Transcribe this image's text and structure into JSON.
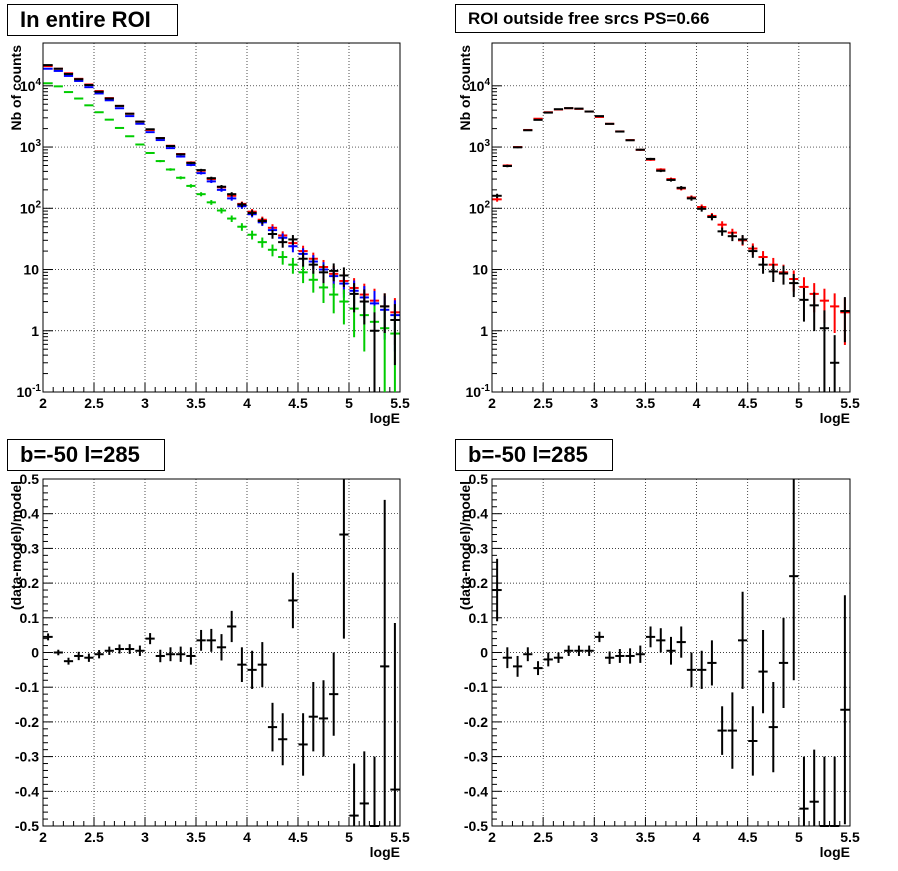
{
  "chart_data": [
    {
      "type": "scatter",
      "title": "In entire ROI",
      "xlabel": "logE",
      "ylabel": "Nb of counts",
      "xlim": [
        2,
        5.5
      ],
      "ylim": [
        0.1,
        50000
      ],
      "yscale": "log",
      "grid": true,
      "xticks": [
        "2",
        "2.5",
        "3",
        "3.5",
        "4",
        "4.5",
        "5",
        "5.5"
      ],
      "yticks": [
        "10^-1",
        "1",
        "10",
        "10^2",
        "10^3",
        "10^4"
      ],
      "series": [
        {
          "color": "#ff0000",
          "x": [
            2.05,
            2.15,
            2.25,
            2.35,
            2.45,
            2.55,
            2.65,
            2.75,
            2.85,
            2.95,
            3.05,
            3.15,
            3.25,
            3.35,
            3.45,
            3.55,
            3.65,
            3.75,
            3.85,
            3.95,
            4.05,
            4.15,
            4.25,
            4.35,
            4.45,
            4.55,
            4.65,
            4.75,
            4.85,
            4.95,
            5.05,
            5.15,
            5.25,
            5.35,
            5.45
          ],
          "y": [
            21000,
            19000,
            16000,
            13000,
            10500,
            8200,
            6300,
            4700,
            3500,
            2600,
            1900,
            1400,
            1050,
            770,
            560,
            410,
            300,
            220,
            160,
            118,
            88,
            65,
            48,
            36,
            27,
            20,
            15,
            11,
            8.5,
            6.5,
            5,
            3.9,
            3.1,
            2.5,
            2.0
          ]
        },
        {
          "color": "#0000ff",
          "x": [
            2.05,
            2.15,
            2.25,
            2.35,
            2.45,
            2.55,
            2.65,
            2.75,
            2.85,
            2.95,
            3.05,
            3.15,
            3.25,
            3.35,
            3.45,
            3.55,
            3.65,
            3.75,
            3.85,
            3.95,
            4.05,
            4.15,
            4.25,
            4.35,
            4.45,
            4.55,
            4.65,
            4.75,
            4.85,
            4.95,
            5.05,
            5.15,
            5.25,
            5.35,
            5.45
          ],
          "y": [
            19000,
            17500,
            14500,
            12000,
            9500,
            7500,
            5800,
            4300,
            3200,
            2400,
            1750,
            1300,
            960,
            700,
            510,
            375,
            275,
            200,
            145,
            108,
            80,
            59,
            44,
            33,
            24,
            18,
            13.5,
            10,
            7.8,
            5.9,
            4.5,
            3.5,
            2.8,
            2.2,
            1.8
          ]
        },
        {
          "color": "#00cc00",
          "x": [
            2.05,
            2.15,
            2.25,
            2.35,
            2.45,
            2.55,
            2.65,
            2.75,
            2.85,
            2.95,
            3.05,
            3.15,
            3.25,
            3.35,
            3.45,
            3.55,
            3.65,
            3.75,
            3.85,
            3.95,
            4.05,
            4.15,
            4.25,
            4.35,
            4.45,
            4.55,
            4.65,
            4.75,
            4.85,
            4.95,
            5.05,
            5.15,
            5.25,
            5.35,
            5.45
          ],
          "y": [
            11000,
            9800,
            7900,
            6200,
            4800,
            3700,
            2800,
            2050,
            1500,
            1100,
            800,
            590,
            430,
            315,
            232,
            170,
            125,
            92,
            68,
            50,
            37,
            28,
            21,
            16,
            12,
            9,
            6.8,
            5.1,
            3.9,
            3,
            2.3,
            1.8,
            1.4,
            1.1,
            0.9
          ]
        },
        {
          "color": "#000000",
          "x": [
            2.05,
            2.15,
            2.25,
            2.35,
            2.45,
            2.55,
            2.65,
            2.75,
            2.85,
            2.95,
            3.05,
            3.15,
            3.25,
            3.35,
            3.45,
            3.55,
            3.65,
            3.75,
            3.85,
            3.95,
            4.05,
            4.15,
            4.25,
            4.35,
            4.45,
            4.55,
            4.65,
            4.75,
            4.85,
            4.95,
            5.05,
            5.15,
            5.25,
            5.35,
            5.45
          ],
          "y": [
            21800,
            19000,
            15600,
            12800,
            10300,
            8000,
            6200,
            4700,
            3500,
            2600,
            1950,
            1400,
            1040,
            760,
            550,
            420,
            310,
            225,
            170,
            115,
            84,
            62,
            38,
            28,
            31,
            15,
            12,
            9,
            9.5,
            8,
            4,
            3,
            1,
            2.5,
            1.5
          ]
        }
      ]
    },
    {
      "type": "scatter",
      "title": "ROI outside free srcs PS=0.66",
      "xlabel": "logE",
      "ylabel": "Nb of counts",
      "xlim": [
        2,
        5.5
      ],
      "ylim": [
        0.1,
        50000
      ],
      "yscale": "log",
      "grid": true,
      "xticks": [
        "2",
        "2.5",
        "3",
        "3.5",
        "4",
        "4.5",
        "5",
        "5.5"
      ],
      "yticks": [
        "10^-1",
        "1",
        "10",
        "10^2",
        "10^3",
        "10^4"
      ],
      "series": [
        {
          "color": "#ff0000",
          "x": [
            2.05,
            2.15,
            2.25,
            2.35,
            2.45,
            2.55,
            2.65,
            2.75,
            2.85,
            2.95,
            3.05,
            3.15,
            3.25,
            3.35,
            3.45,
            3.55,
            3.65,
            3.75,
            3.85,
            3.95,
            4.05,
            4.15,
            4.25,
            4.35,
            4.45,
            4.55,
            4.65,
            4.75,
            4.85,
            4.95,
            5.05,
            5.15,
            5.25,
            5.35,
            5.45
          ],
          "y": [
            140,
            500,
            1000,
            1900,
            2900,
            3700,
            4100,
            4300,
            4200,
            3800,
            3100,
            2400,
            1800,
            1300,
            900,
            620,
            430,
            300,
            210,
            150,
            105,
            75,
            54,
            40,
            30,
            22,
            16,
            12,
            9,
            7,
            5.2,
            4,
            3.1,
            2.5,
            2.0
          ]
        },
        {
          "color": "#000000",
          "x": [
            2.05,
            2.15,
            2.25,
            2.35,
            2.45,
            2.55,
            2.65,
            2.75,
            2.85,
            2.95,
            3.05,
            3.15,
            3.25,
            3.35,
            3.45,
            3.55,
            3.65,
            3.75,
            3.85,
            3.95,
            4.05,
            4.15,
            4.25,
            4.35,
            4.45,
            4.55,
            4.65,
            4.75,
            4.85,
            4.95,
            5.05,
            5.15,
            5.25,
            5.35,
            5.45
          ],
          "y": [
            160,
            490,
            990,
            1880,
            2780,
            3650,
            4150,
            4320,
            4240,
            3800,
            3200,
            2390,
            1790,
            1290,
            905,
            640,
            410,
            290,
            216,
            145,
            98,
            72,
            42,
            35,
            31,
            20,
            12,
            9.3,
            8.6,
            6,
            3.2,
            2.6,
            1.1,
            0.3,
            2.1
          ]
        }
      ]
    },
    {
      "type": "scatter",
      "title": "b=-50 l=285",
      "xlabel": "logE",
      "ylabel": "(data-model)/model",
      "xlim": [
        2,
        5.5
      ],
      "ylim": [
        -0.5,
        0.5
      ],
      "grid": true,
      "xticks": [
        "2",
        "2.5",
        "3",
        "3.5",
        "4",
        "4.5",
        "5",
        "5.5"
      ],
      "yticks": [
        "-0.5",
        "-0.4",
        "-0.3",
        "-0.2",
        "-0.1",
        "0",
        "0.1",
        "0.2",
        "0.3",
        "0.4",
        "0.5"
      ],
      "series": [
        {
          "color": "#000000",
          "x": [
            2.05,
            2.15,
            2.25,
            2.35,
            2.45,
            2.55,
            2.65,
            2.75,
            2.85,
            2.95,
            3.05,
            3.15,
            3.25,
            3.35,
            3.45,
            3.55,
            3.65,
            3.75,
            3.85,
            3.95,
            4.05,
            4.15,
            4.25,
            4.35,
            4.45,
            4.55,
            4.65,
            4.75,
            4.85,
            4.95,
            5.05,
            5.15,
            5.25,
            5.35,
            5.45
          ],
          "y": [
            0.045,
            0.0,
            -0.025,
            -0.01,
            -0.015,
            -0.005,
            0.005,
            0.01,
            0.01,
            0.005,
            0.04,
            -0.01,
            -0.005,
            -0.005,
            -0.01,
            0.035,
            0.035,
            0.015,
            0.075,
            -0.035,
            -0.05,
            -0.035,
            -0.215,
            -0.25,
            0.15,
            -0.265,
            -0.185,
            -0.19,
            -0.12,
            0.34,
            -0.47,
            -0.435,
            -0.5,
            -0.04,
            -0.395
          ],
          "err": [
            0.01,
            0.008,
            0.01,
            0.012,
            0.012,
            0.012,
            0.012,
            0.013,
            0.014,
            0.015,
            0.016,
            0.018,
            0.02,
            0.022,
            0.025,
            0.03,
            0.033,
            0.038,
            0.045,
            0.05,
            0.055,
            0.065,
            0.07,
            0.075,
            0.08,
            0.09,
            0.1,
            0.11,
            0.12,
            0.3,
            0.15,
            0.15,
            0.2,
            0.48,
            0.48
          ]
        }
      ]
    },
    {
      "type": "scatter",
      "title": "b=-50 l=285",
      "xlabel": "logE",
      "ylabel": "(data-model)/model",
      "xlim": [
        2,
        5.5
      ],
      "ylim": [
        -0.5,
        0.5
      ],
      "grid": true,
      "xticks": [
        "2",
        "2.5",
        "3",
        "3.5",
        "4",
        "4.5",
        "5",
        "5.5"
      ],
      "yticks": [
        "-0.5",
        "-0.4",
        "-0.3",
        "-0.2",
        "-0.1",
        "0",
        "0.1",
        "0.2",
        "0.3",
        "0.4",
        "0.5"
      ],
      "series": [
        {
          "color": "#000000",
          "x": [
            2.05,
            2.15,
            2.25,
            2.35,
            2.45,
            2.55,
            2.65,
            2.75,
            2.85,
            2.95,
            3.05,
            3.15,
            3.25,
            3.35,
            3.45,
            3.55,
            3.65,
            3.75,
            3.85,
            3.95,
            4.05,
            4.15,
            4.25,
            4.35,
            4.45,
            4.55,
            4.65,
            4.75,
            4.85,
            4.95,
            5.05,
            5.15,
            5.25,
            5.35,
            5.45
          ],
          "y": [
            0.18,
            -0.015,
            -0.04,
            -0.005,
            -0.045,
            -0.02,
            -0.015,
            0.005,
            0.005,
            0.005,
            0.045,
            -0.015,
            -0.01,
            -0.01,
            -0.005,
            0.045,
            0.035,
            0.005,
            0.03,
            -0.05,
            -0.05,
            -0.03,
            -0.225,
            -0.225,
            0.035,
            -0.255,
            -0.055,
            -0.215,
            -0.03,
            0.22,
            -0.45,
            -0.43,
            -0.5,
            -0.5,
            -0.165
          ],
          "err": [
            0.09,
            0.03,
            0.03,
            0.02,
            0.02,
            0.02,
            0.015,
            0.015,
            0.015,
            0.015,
            0.015,
            0.018,
            0.02,
            0.022,
            0.025,
            0.03,
            0.035,
            0.04,
            0.045,
            0.05,
            0.055,
            0.065,
            0.07,
            0.11,
            0.14,
            0.1,
            0.12,
            0.13,
            0.13,
            0.3,
            0.15,
            0.15,
            0.2,
            0.2,
            0.33
          ]
        }
      ]
    }
  ]
}
